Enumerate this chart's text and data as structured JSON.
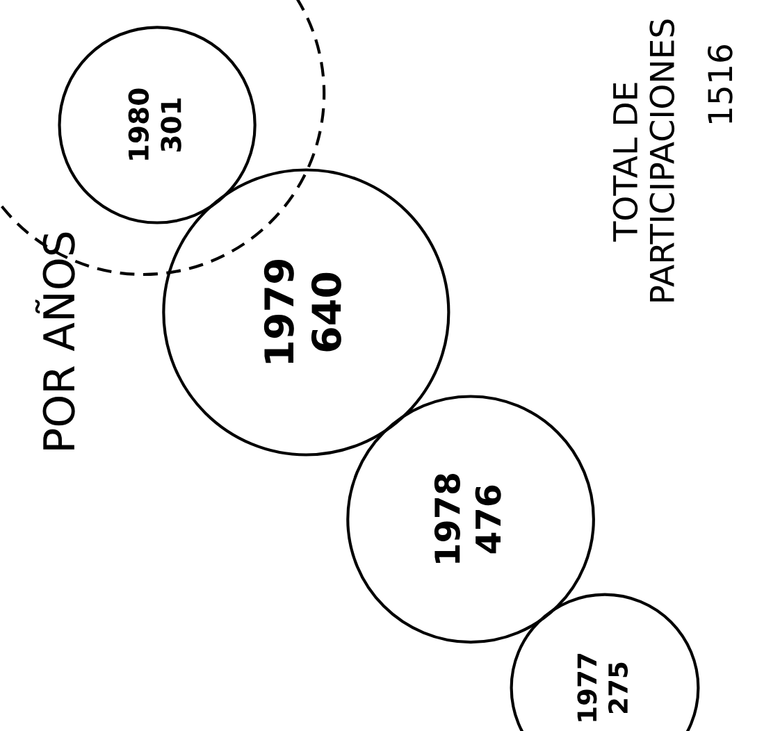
{
  "chart_data": {
    "type": "other",
    "title": "POR AÑOS",
    "categories": [
      "1977",
      "1978",
      "1979",
      "1980"
    ],
    "values": [
      275,
      476,
      640,
      301
    ],
    "data_labels": true,
    "color": "#000000",
    "annotations": [
      "TOTAL DE\nPARTICIPACIONES",
      "1516"
    ]
  }
}
